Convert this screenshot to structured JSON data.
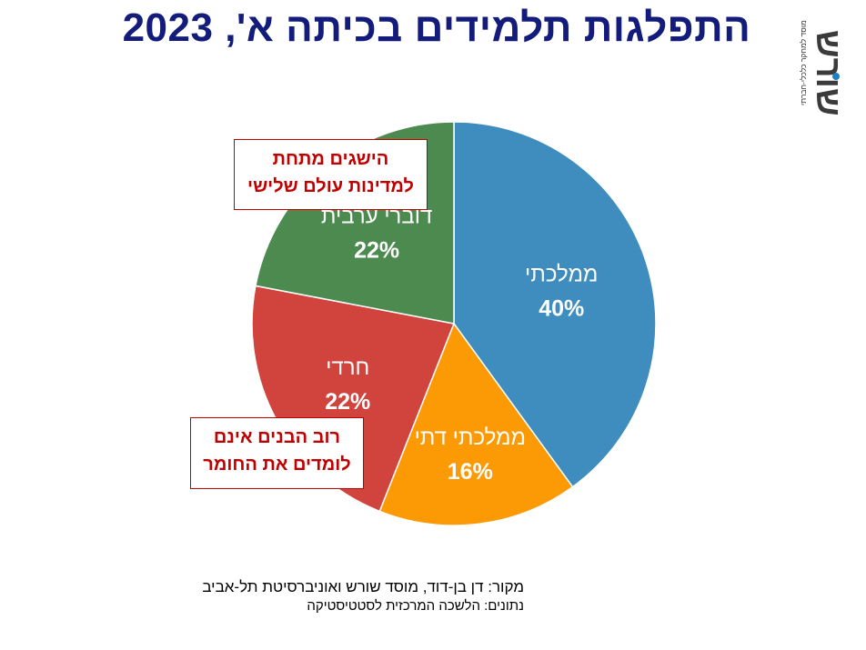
{
  "header": {
    "title": "התפלגות תלמידים בכיתה א', 2023"
  },
  "logo": {
    "word": "שורש",
    "tagline": "מוסד למחקר כלכלי-חברתי"
  },
  "chart_data": {
    "type": "pie",
    "title": "התפלגות תלמידים בכיתה א', 2023",
    "slices": [
      {
        "label": "ממלכתי",
        "value": 40,
        "value_label": "40%",
        "color": "#3f8dbf"
      },
      {
        "label": "ממלכתי דתי",
        "value": 16,
        "value_label": "16%",
        "color": "#fb9a05"
      },
      {
        "label": "חרדי",
        "value": 22,
        "value_label": "22%",
        "color": "#d1443e"
      },
      {
        "label": "דוברי ערבית",
        "value": 22,
        "value_label": "22%",
        "color": "#4d8a4f"
      }
    ],
    "start": "12 o'clock",
    "direction": "clockwise",
    "annotations": [
      {
        "slice": "דוברי ערבית",
        "line1": "הישגים מתחת",
        "line2": "למדינות עולם שלישי"
      },
      {
        "slice": "חרדי",
        "line1": "רוב הבנים אינם",
        "line2": "לומדים את החומר"
      }
    ]
  },
  "footer": {
    "source_line": "מקור:  דן בן-דוד, מוסד שורש ואוניברסיטת תל-אביב",
    "data_line": "נתונים: הלשכה המרכזית לסטטיסטיקה"
  }
}
